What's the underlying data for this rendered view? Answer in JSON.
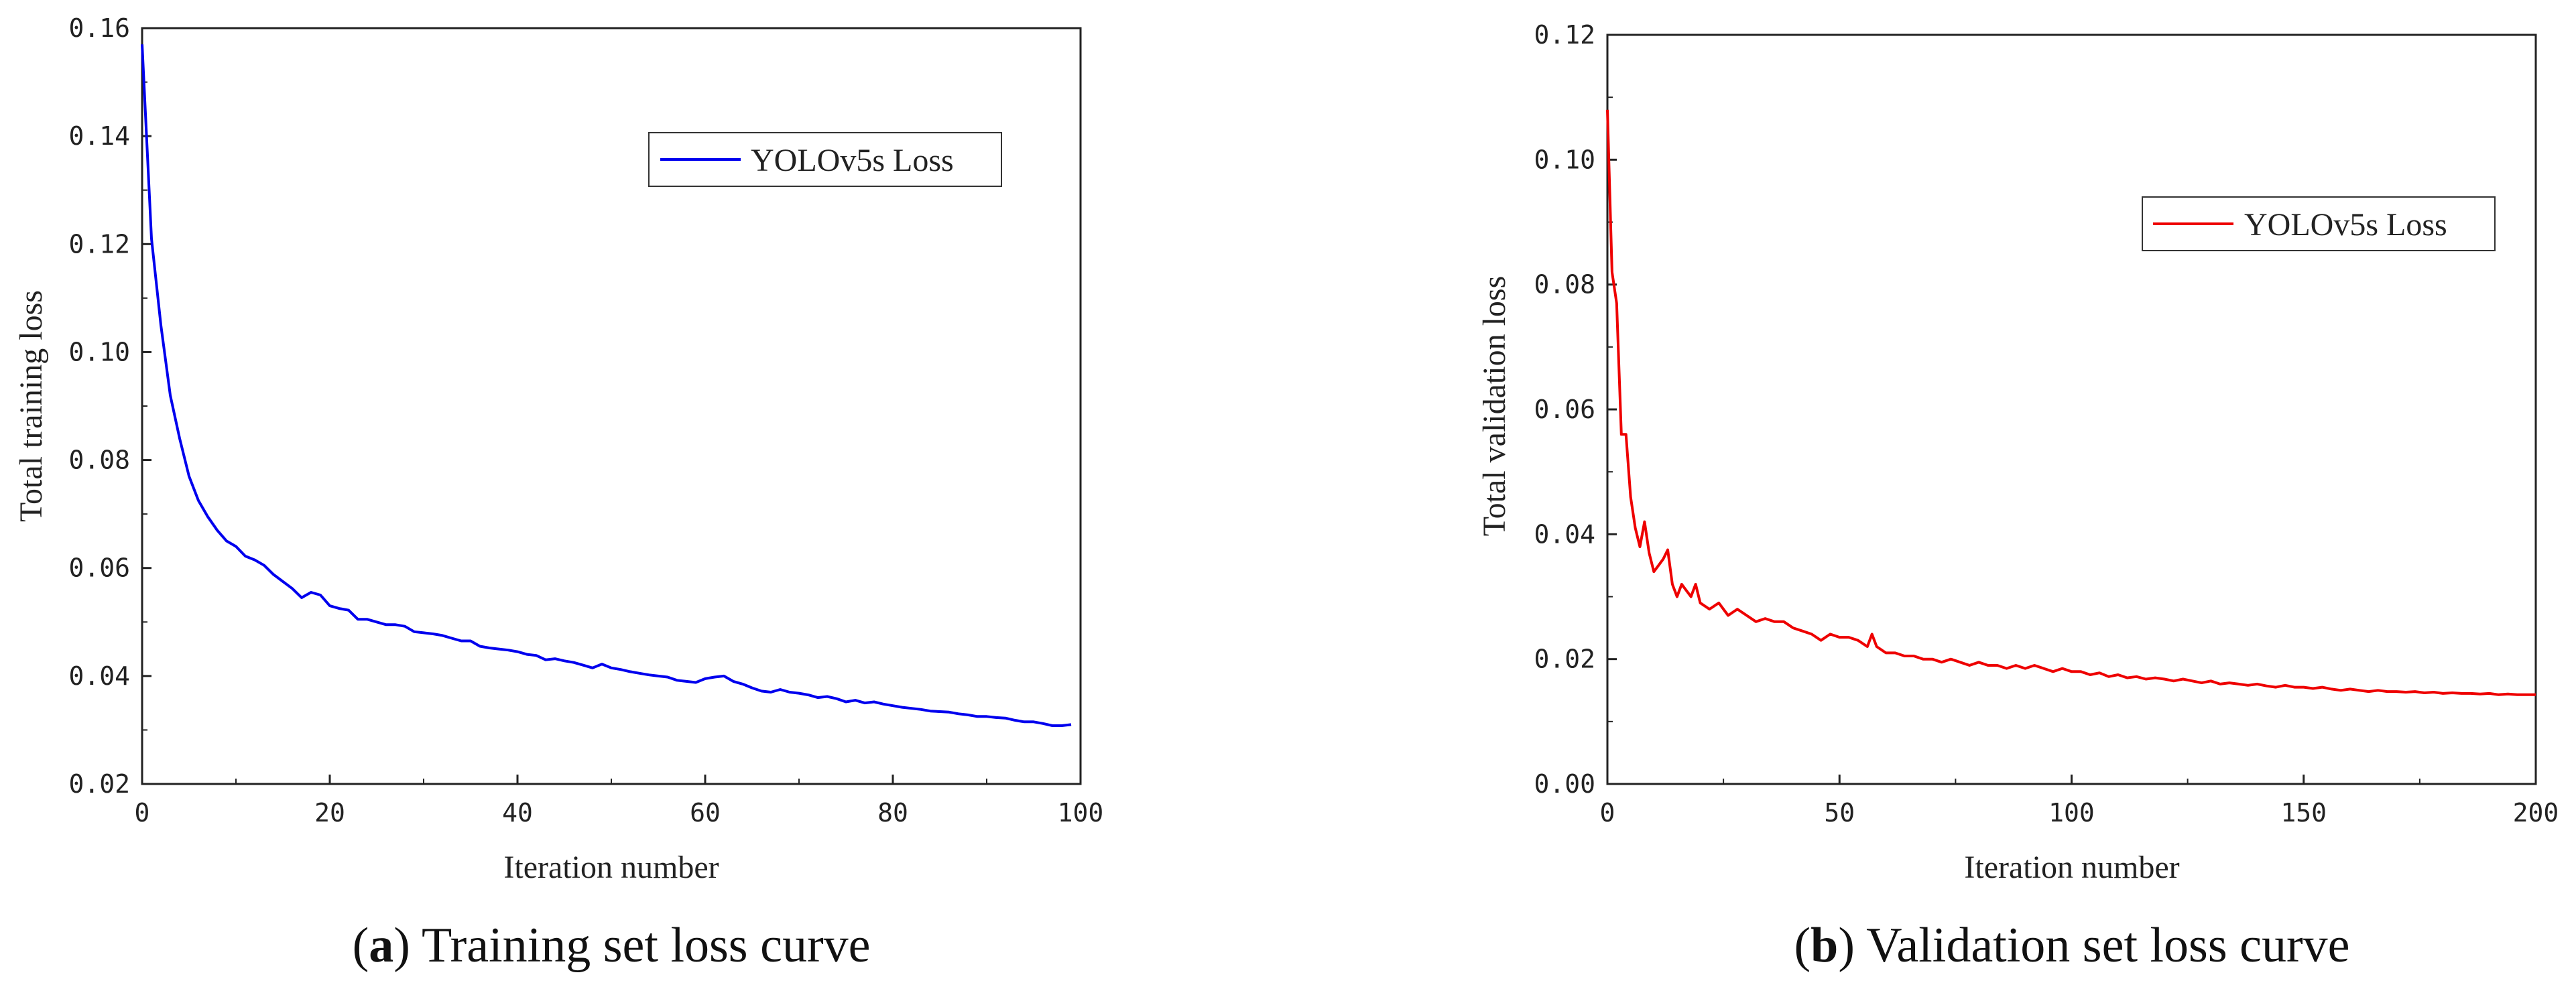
{
  "chart_data": [
    {
      "type": "line",
      "caption_letter": "a",
      "caption_open": "(",
      "caption_close": ")",
      "caption_text": " Training set loss curve",
      "xlabel": "Iteration number",
      "ylabel": "Total training loss",
      "xlim": [
        0,
        100
      ],
      "ylim": [
        0.02,
        0.16
      ],
      "xticks": [
        "0",
        "20",
        "40",
        "60",
        "80",
        "100"
      ],
      "yticks": [
        "0.02",
        "0.04",
        "0.06",
        "0.08",
        "0.10",
        "0.12",
        "0.14",
        "0.16"
      ],
      "legend_position": "top-right",
      "grid": false,
      "series": [
        {
          "name": "YOLOv5s Loss",
          "color": "#0000ee",
          "x": [
            0,
            1,
            2,
            3,
            4,
            5,
            6,
            7,
            8,
            9,
            10,
            11,
            12,
            13,
            14,
            15,
            16,
            17,
            18,
            19,
            20,
            21,
            22,
            23,
            24,
            25,
            26,
            27,
            28,
            29,
            30,
            31,
            32,
            33,
            34,
            35,
            36,
            37,
            38,
            39,
            40,
            41,
            42,
            43,
            44,
            45,
            46,
            47,
            48,
            49,
            50,
            51,
            52,
            53,
            54,
            55,
            56,
            57,
            58,
            59,
            60,
            61,
            62,
            63,
            64,
            65,
            66,
            67,
            68,
            69,
            70,
            71,
            72,
            73,
            74,
            75,
            76,
            77,
            78,
            79,
            80,
            81,
            82,
            83,
            84,
            85,
            86,
            87,
            88,
            89,
            90,
            91,
            92,
            93,
            94,
            95,
            96,
            97,
            98,
            99
          ],
          "y": [
            0.157,
            0.121,
            0.105,
            0.092,
            0.084,
            0.077,
            0.0725,
            0.0695,
            0.067,
            0.065,
            0.064,
            0.0622,
            0.0615,
            0.0605,
            0.0588,
            0.0575,
            0.0562,
            0.0545,
            0.0555,
            0.055,
            0.053,
            0.0525,
            0.0522,
            0.0505,
            0.0505,
            0.05,
            0.0495,
            0.0495,
            0.0492,
            0.0482,
            0.048,
            0.0478,
            0.0475,
            0.047,
            0.0465,
            0.0465,
            0.0455,
            0.0452,
            0.045,
            0.0448,
            0.0445,
            0.044,
            0.0438,
            0.043,
            0.0432,
            0.0428,
            0.0425,
            0.042,
            0.0415,
            0.0422,
            0.0415,
            0.0412,
            0.0408,
            0.0405,
            0.0402,
            0.04,
            0.0398,
            0.0392,
            0.039,
            0.0388,
            0.0395,
            0.0398,
            0.04,
            0.039,
            0.0385,
            0.0378,
            0.0372,
            0.037,
            0.0375,
            0.037,
            0.0368,
            0.0365,
            0.036,
            0.0362,
            0.0358,
            0.0352,
            0.0355,
            0.035,
            0.0352,
            0.0348,
            0.0345,
            0.0342,
            0.034,
            0.0338,
            0.0335,
            0.0334,
            0.0333,
            0.033,
            0.0328,
            0.0325,
            0.0325,
            0.0323,
            0.0322,
            0.0318,
            0.0315,
            0.0315,
            0.0312,
            0.0308,
            0.0308,
            0.031
          ]
        }
      ]
    },
    {
      "type": "line",
      "caption_letter": "b",
      "caption_open": "(",
      "caption_close": ")",
      "caption_text": " Validation set loss curve",
      "xlabel": "Iteration number",
      "ylabel": "Total validation loss",
      "xlim": [
        0,
        200
      ],
      "ylim": [
        0.0,
        0.12
      ],
      "xticks": [
        "0",
        "50",
        "100",
        "150",
        "200"
      ],
      "yticks": [
        "0.00",
        "0.02",
        "0.04",
        "0.06",
        "0.08",
        "0.10",
        "0.12"
      ],
      "legend_position": "upper-right",
      "grid": false,
      "series": [
        {
          "name": "YOLOv5s Loss",
          "color": "#ee0000",
          "x": [
            0,
            1,
            2,
            3,
            4,
            5,
            6,
            7,
            8,
            9,
            10,
            11,
            12,
            13,
            14,
            15,
            16,
            17,
            18,
            19,
            20,
            22,
            24,
            26,
            28,
            30,
            32,
            34,
            36,
            38,
            40,
            42,
            44,
            46,
            48,
            50,
            52,
            54,
            56,
            57,
            58,
            60,
            62,
            64,
            66,
            68,
            70,
            72,
            74,
            76,
            78,
            80,
            82,
            84,
            86,
            88,
            90,
            92,
            94,
            96,
            98,
            100,
            102,
            104,
            106,
            108,
            110,
            112,
            114,
            116,
            118,
            120,
            122,
            124,
            126,
            128,
            130,
            132,
            134,
            136,
            138,
            140,
            142,
            144,
            146,
            148,
            150,
            152,
            154,
            156,
            158,
            160,
            162,
            164,
            166,
            168,
            170,
            172,
            174,
            176,
            178,
            180,
            182,
            184,
            186,
            188,
            190,
            192,
            194,
            196,
            198,
            200
          ],
          "y": [
            0.108,
            0.082,
            0.077,
            0.056,
            0.056,
            0.046,
            0.041,
            0.038,
            0.042,
            0.037,
            0.034,
            0.035,
            0.036,
            0.0375,
            0.032,
            0.03,
            0.032,
            0.031,
            0.03,
            0.032,
            0.029,
            0.028,
            0.029,
            0.027,
            0.028,
            0.027,
            0.026,
            0.0265,
            0.026,
            0.026,
            0.025,
            0.0245,
            0.024,
            0.023,
            0.024,
            0.0235,
            0.0235,
            0.023,
            0.022,
            0.024,
            0.022,
            0.021,
            0.021,
            0.0205,
            0.0205,
            0.02,
            0.02,
            0.0195,
            0.02,
            0.0195,
            0.019,
            0.0195,
            0.019,
            0.019,
            0.0185,
            0.019,
            0.0185,
            0.019,
            0.0185,
            0.018,
            0.0185,
            0.018,
            0.018,
            0.0175,
            0.0178,
            0.0172,
            0.0175,
            0.017,
            0.0172,
            0.0168,
            0.017,
            0.0168,
            0.0165,
            0.0168,
            0.0165,
            0.0162,
            0.0165,
            0.016,
            0.0162,
            0.016,
            0.0158,
            0.016,
            0.0157,
            0.0155,
            0.0158,
            0.0155,
            0.0155,
            0.0153,
            0.0155,
            0.0152,
            0.015,
            0.0152,
            0.015,
            0.0148,
            0.015,
            0.0148,
            0.0148,
            0.0147,
            0.0148,
            0.0146,
            0.0147,
            0.0145,
            0.0146,
            0.0145,
            0.0145,
            0.0144,
            0.0145,
            0.0143,
            0.0144,
            0.0143,
            0.0143,
            0.0143
          ]
        }
      ]
    }
  ]
}
